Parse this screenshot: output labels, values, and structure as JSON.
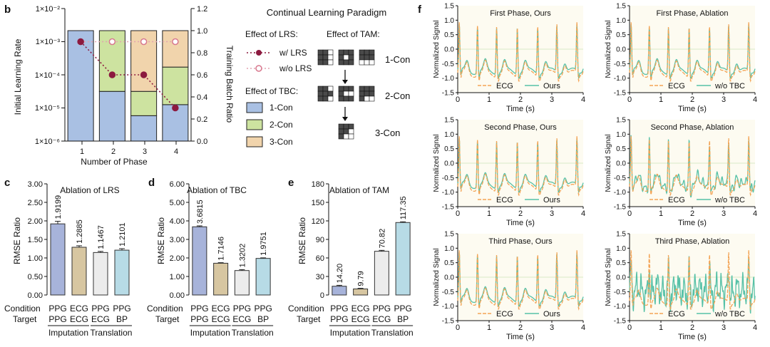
{
  "panel_labels": {
    "b": "b",
    "c": "c",
    "d": "d",
    "e": "e",
    "f": "f"
  },
  "colors": {
    "blue_fill": "#a9c0e3",
    "green_fill": "#cde3a0",
    "tan_fill": "#f1d4ac",
    "purple": "#a7b3da",
    "tan": "#d7c6a1",
    "light": "#ececec",
    "cyan": "#b7dbe6",
    "lrs_dark": "#8c1a3f",
    "lrs_light": "#e2a2b0",
    "ecg": "#f3a456",
    "ours": "#56c1a7"
  },
  "paradigm": {
    "title": "Continual Learning Paradigm",
    "lrs_heading": "Effect of LRS:",
    "tam_heading": "Effect of TAM:",
    "tbc_heading": "Effect of TBC:",
    "lrs_legend": [
      "w/ LRS",
      "w/o LRS"
    ],
    "tbc_legend": [
      "1-Con",
      "2-Con",
      "3-Con"
    ],
    "tam_labels": [
      "1-Con",
      "2-Con",
      "3-Con"
    ]
  },
  "chart_data": [
    {
      "id": "b",
      "type": "bar",
      "title": "",
      "xlabel": "Number of Phase",
      "ylabel": "Initial Learning Rate",
      "ylabel_right": "Training Batch Ratio",
      "categories": [
        "1",
        "2",
        "3",
        "4"
      ],
      "stacked_series": [
        {
          "name": "1-Con",
          "values": [
            1.0,
            0.45,
            0.23,
            0.33
          ]
        },
        {
          "name": "2-Con",
          "values": [
            0.0,
            0.55,
            0.22,
            0.34
          ]
        },
        {
          "name": "3-Con",
          "values": [
            0.0,
            0.0,
            0.55,
            0.33
          ]
        }
      ],
      "line_series": [
        {
          "name": "w/ LRS",
          "values": [
            0.001,
            0.0001,
            0.0001,
            1e-05
          ]
        },
        {
          "name": "w/o LRS",
          "values": [
            0.001,
            0.001,
            0.001,
            0.001
          ]
        }
      ],
      "left_ticks": [
        "1×10⁻²",
        "1×10⁻³",
        "1×10⁻⁴",
        "1×10⁻⁵",
        "1×10⁻⁶"
      ],
      "right_ticks": [
        "1.2",
        "1.0",
        "0.8",
        "0.6",
        "0.4",
        "0.2",
        "0.0"
      ],
      "ylim_right": [
        0,
        1.2
      ]
    },
    {
      "id": "c",
      "type": "bar",
      "title": "Ablation of LRS",
      "ylabel": "RMSE Ratio",
      "ylim": [
        0,
        3
      ],
      "yticks": [
        "0.00",
        "0.50",
        "1.00",
        "1.50",
        "2.00",
        "2.50",
        "3.00"
      ],
      "values": [
        1.9199,
        1.2885,
        1.1467,
        1.2101
      ],
      "value_labels": [
        "1.9199",
        "1.2885",
        "1.1467",
        "1.2101"
      ],
      "errors": [
        0.07,
        0.04,
        0.03,
        0.04
      ]
    },
    {
      "id": "d",
      "type": "bar",
      "title": "Ablation of TBC",
      "ylabel": "RMSE Ratio",
      "ylim": [
        0,
        6
      ],
      "yticks": [
        "0.00",
        "1.00",
        "2.00",
        "3.00",
        "4.00",
        "5.00",
        "6.00"
      ],
      "values": [
        3.6815,
        1.7146,
        1.3202,
        1.9751
      ],
      "value_labels": [
        "3.6815",
        "1.7146",
        "1.3202",
        "1.9751"
      ],
      "errors": [
        0.05,
        0.03,
        0.05,
        0.03
      ]
    },
    {
      "id": "e",
      "type": "bar",
      "title": "Ablation of TAM",
      "ylabel": "RMSE Ratio",
      "ylim": [
        0,
        180
      ],
      "yticks": [
        "0",
        "30",
        "60",
        "90",
        "120",
        "150",
        "180"
      ],
      "values": [
        14.2,
        9.79,
        70.82,
        117.35
      ],
      "value_labels": [
        "14.20",
        "9.79",
        "70.82",
        "117.35"
      ],
      "errors": [
        1.5,
        1.0,
        1.5,
        1.2
      ]
    },
    {
      "id": "f",
      "type": "line",
      "xlabel": "Time (s)",
      "ylabel": "Normalized Signal",
      "xlim": [
        0,
        4
      ],
      "ylim": [
        -1.5,
        1.5
      ],
      "xticks": [
        "0",
        "1",
        "2",
        "3",
        "4"
      ],
      "yticks": [
        "1.5",
        "1.0",
        "0.5",
        "0.0",
        "-0.5",
        "-1.0",
        "-1.5"
      ],
      "ecg_peaks_s": [
        0.05,
        0.63,
        1.24,
        1.9,
        2.55,
        3.16,
        3.8
      ],
      "subplots": [
        {
          "title": "First Phase, Ours",
          "series": [
            "ECG",
            "Ours"
          ],
          "noise": 0
        },
        {
          "title": "First Phase, Ablation",
          "series": [
            "ECG",
            "w/o TBC"
          ],
          "noise": 0
        },
        {
          "title": "Second Phase, Ours",
          "series": [
            "ECG",
            "Ours"
          ],
          "noise": 0
        },
        {
          "title": "Second Phase, Ablation",
          "series": [
            "ECG",
            "w/o TBC"
          ],
          "noise": 1
        },
        {
          "title": "Third Phase, Ours",
          "series": [
            "ECG",
            "Ours"
          ],
          "noise": 0
        },
        {
          "title": "Third Phase, Ablation",
          "series": [
            "ECG",
            "w/o TBC"
          ],
          "noise": 2
        }
      ]
    }
  ],
  "cde_axis": {
    "condition_label": "Condition",
    "target_label": "Target",
    "conditions": [
      "PPG",
      "ECG",
      "PPG",
      "PPG"
    ],
    "targets": [
      "PPG",
      "ECG",
      "ECG",
      "BP"
    ],
    "group_labels": [
      "Imputation",
      "Translation"
    ]
  }
}
